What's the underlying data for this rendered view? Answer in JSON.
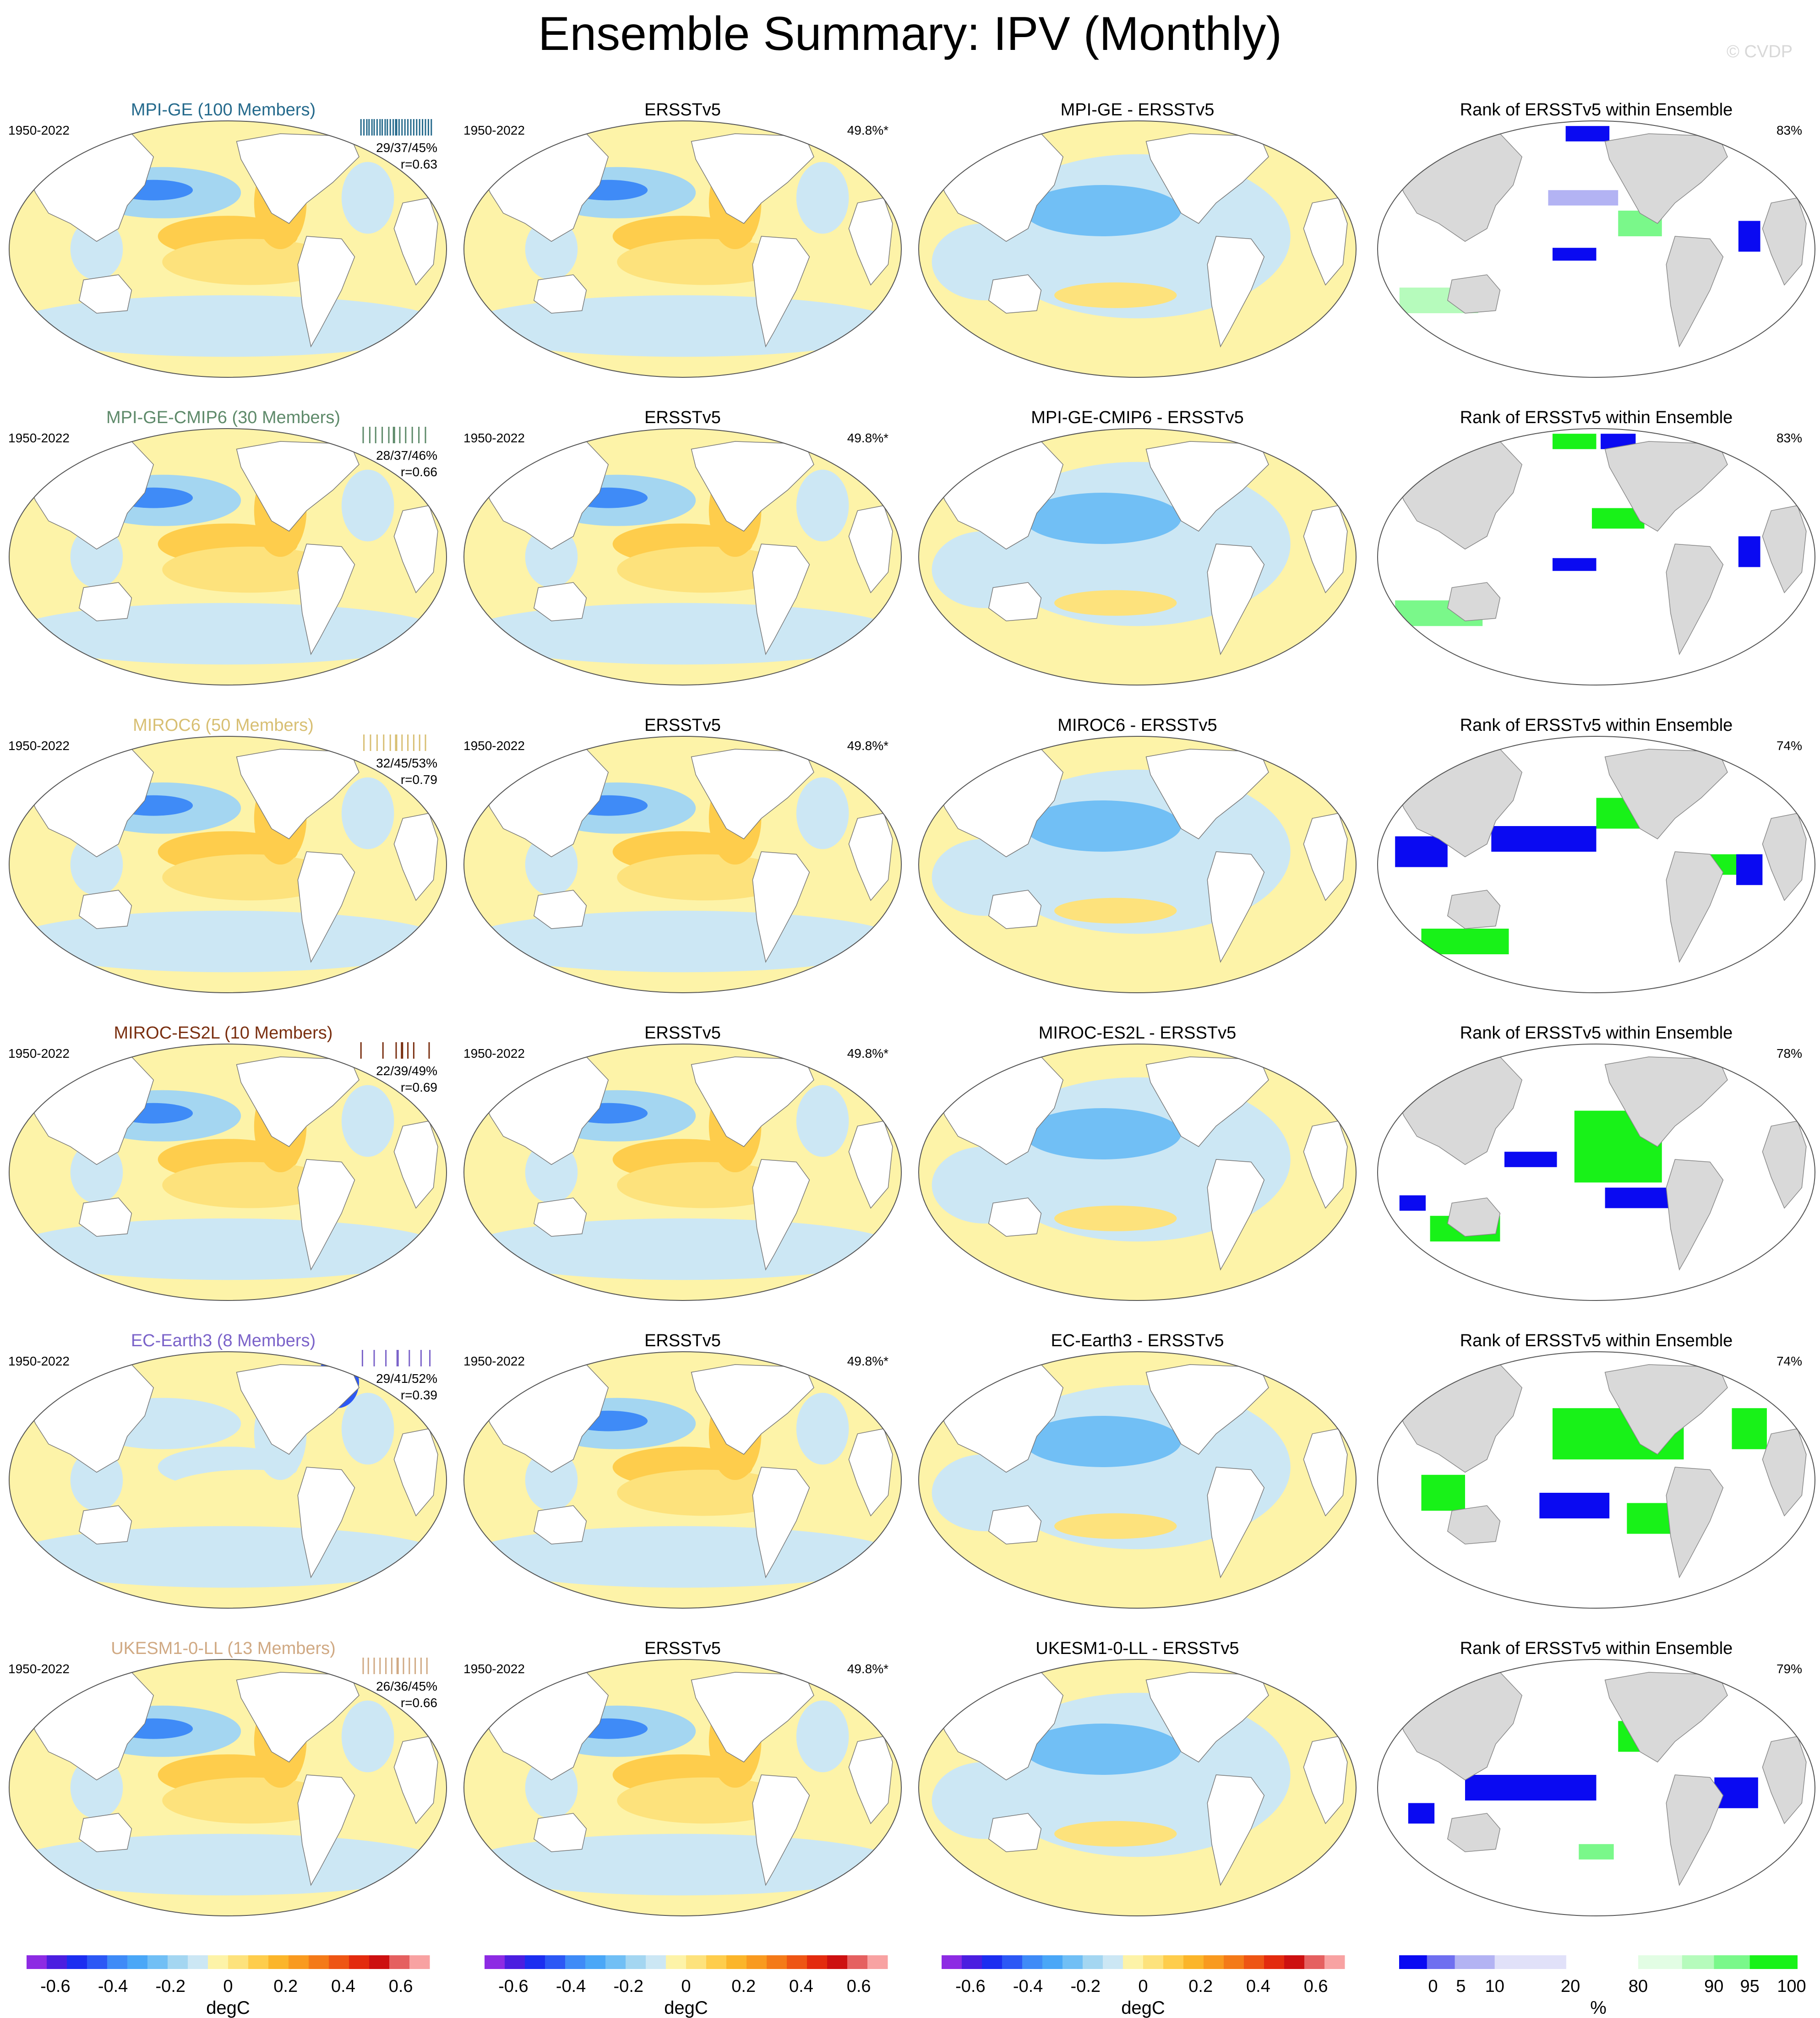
{
  "title": "Ensemble Summary: IPV (Monthly)",
  "copyright": "© CVDP",
  "chart_data": {
    "type": "heatmap",
    "variable": "IPV (Monthly)",
    "observations": "ERSSTv5",
    "period": "1950-2022",
    "obs_pct": "49.8%*",
    "column_titles": {
      "obs": "ERSSTv5",
      "rank": "Rank of ERSSTv5 within Ensemble"
    },
    "rows": [
      {
        "model": "MPI-GE",
        "label": "MPI-GE (100 Members)",
        "color": "#256a8c",
        "stats": "29/37/45%",
        "r": "r=0.63",
        "diff": "MPI-GE - ERSSTv5",
        "rank_pct": "83%",
        "ticks": [
          0.02,
          0.06,
          0.1,
          0.13,
          0.17,
          0.2,
          0.24,
          0.28,
          0.31,
          0.35,
          0.38,
          0.42,
          0.46,
          0.5,
          0.54,
          0.58,
          0.62,
          0.66,
          0.7,
          0.74,
          0.78,
          0.82,
          0.86,
          0.9,
          0.94,
          0.98
        ]
      },
      {
        "model": "MPI-GE-CMIP6",
        "label": "MPI-GE-CMIP6 (30 Members)",
        "color": "#5e8a6a",
        "stats": "28/37/46%",
        "r": "r=0.66",
        "diff": "MPI-GE-CMIP6 - ERSSTv5",
        "rank_pct": "83%",
        "ticks": [
          0.05,
          0.14,
          0.22,
          0.31,
          0.4,
          0.47,
          0.55,
          0.63,
          0.72,
          0.81,
          0.9
        ]
      },
      {
        "model": "MIROC6",
        "label": "MIROC6 (50 Members)",
        "color": "#d8bf73",
        "stats": "32/45/53%",
        "r": "r=0.79",
        "diff": "MIROC6 - ERSSTv5",
        "rank_pct": "74%",
        "ticks": [
          0.06,
          0.15,
          0.24,
          0.33,
          0.42,
          0.5,
          0.58,
          0.66,
          0.74,
          0.82,
          0.9
        ]
      },
      {
        "model": "MIROC-ES2L",
        "label": "MIROC-ES2L (10 Members)",
        "color": "#7a2f10",
        "stats": "22/39/49%",
        "r": "r=0.69",
        "diff": "MIROC-ES2L - ERSSTv5",
        "rank_pct": "78%",
        "ticks": [
          0.02,
          0.32,
          0.5,
          0.58,
          0.66,
          0.74,
          0.95
        ]
      },
      {
        "model": "EC-Earth3",
        "label": "EC-Earth3 (8 Members)",
        "color": "#7b63c9",
        "stats": "29/41/52%",
        "r": "r=0.39",
        "diff": "EC-Earth3 - ERSSTv5",
        "rank_pct": "74%",
        "ticks": [
          0.04,
          0.2,
          0.36,
          0.52,
          0.68,
          0.84,
          0.96
        ]
      },
      {
        "model": "UKESM1-0-LL",
        "label": "UKESM1-0-LL (13 Members)",
        "color": "#d0a983",
        "stats": "26/36/45%",
        "r": "r=0.66",
        "diff": "UKESM1-0-LL - ERSSTv5",
        "rank_pct": "79%",
        "ticks": [
          0.05,
          0.12,
          0.2,
          0.28,
          0.36,
          0.44,
          0.52,
          0.6,
          0.68,
          0.76,
          0.84,
          0.92
        ]
      }
    ],
    "temp_colorbar": {
      "units": "degC",
      "tick_labels": [
        "-0.6",
        "-0.4",
        "-0.2",
        "0",
        "0.2",
        "0.4",
        "0.6"
      ],
      "colors": [
        "#8d2be3",
        "#4b1ee0",
        "#1c2ef0",
        "#2c58f5",
        "#3f8bf7",
        "#4aa7f7",
        "#71bff5",
        "#a4d6f1",
        "#cce7f4",
        "#fdf3a8",
        "#fde27c",
        "#fecd4c",
        "#fbb52a",
        "#f99a1f",
        "#f47a18",
        "#ee5514",
        "#e32b0e",
        "#cd1010",
        "#e56060",
        "#f8a2a2"
      ]
    },
    "rank_colorbar": {
      "units": "%",
      "tick_labels": [
        "0",
        "5",
        "10",
        "20",
        "80",
        "90",
        "95",
        "100"
      ],
      "colors": [
        "#0a0af2",
        "#6f6ff0",
        "#b3b3f3",
        "#e1e1f9",
        "#ffffff",
        "#e2fde4",
        "#b6fbbc",
        "#7af88a",
        "#18f218"
      ]
    }
  }
}
